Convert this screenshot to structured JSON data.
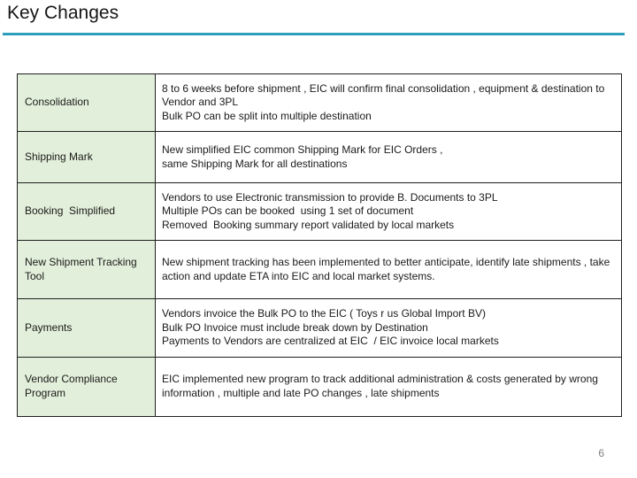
{
  "slide": {
    "title": "Key Changes",
    "page_number": "6",
    "accent_color": "#2d9ebb",
    "label_fill_color": "#e2efda"
  },
  "table": {
    "rows": [
      {
        "label": "Consolidation",
        "lines": [
          "8 to 6 weeks before shipment , EIC will confirm final consolidation , equipment & destination to Vendor and 3PL",
          "Bulk PO can be split into multiple destination"
        ]
      },
      {
        "label": "Shipping Mark",
        "lines": [
          "New simplified EIC common Shipping Mark for EIC Orders ,",
          "same Shipping Mark for all destinations"
        ]
      },
      {
        "label": "Booking  Simplified",
        "lines": [
          "Vendors to use Electronic transmission to provide B. Documents to 3PL",
          "Multiple POs can be booked  using 1 set of document",
          "Removed  Booking summary report validated by local markets"
        ]
      },
      {
        "label": "New Shipment Tracking Tool",
        "lines": [
          "New shipment tracking has been implemented to better anticipate, identify late shipments , take action and update ETA into EIC and local market systems."
        ]
      },
      {
        "label": "Payments",
        "lines": [
          "Vendors invoice the Bulk PO to the EIC ( Toys r us Global Import BV)",
          "Bulk PO Invoice must include break down by Destination",
          "Payments to Vendors are centralized at EIC  / EIC invoice local markets"
        ]
      },
      {
        "label": "Vendor Compliance Program",
        "lines": [
          "EIC implemented new program to track additional administration & costs generated by wrong information , multiple and late PO changes , late shipments"
        ]
      }
    ]
  }
}
